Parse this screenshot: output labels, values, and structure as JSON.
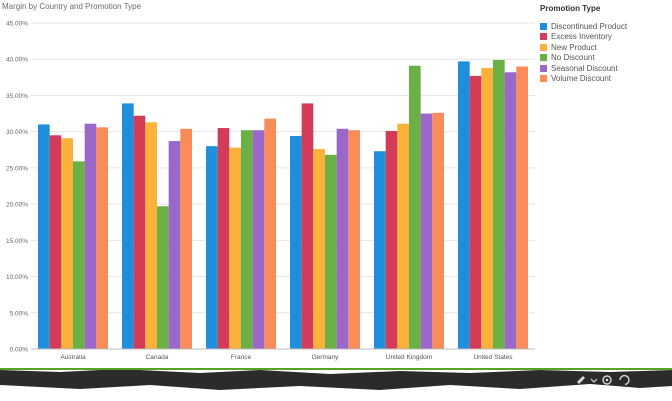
{
  "chart_data": {
    "type": "bar",
    "title": "Margin by Country and Promotion Type",
    "legend_title": "Promotion Type",
    "legend_position": "right",
    "categories": [
      "Australia",
      "Canada",
      "France",
      "Germany",
      "United Kingdom",
      "United States"
    ],
    "series": [
      {
        "name": "Discontinued Product",
        "color": "#1f8fdb",
        "values": [
          31.0,
          33.9,
          28.0,
          29.4,
          27.3,
          39.7
        ]
      },
      {
        "name": "Excess Inventory",
        "color": "#d33b5a",
        "values": [
          29.5,
          32.2,
          30.5,
          33.9,
          30.1,
          37.7
        ]
      },
      {
        "name": "New Product",
        "color": "#fcb23a",
        "values": [
          29.1,
          31.3,
          27.8,
          27.6,
          31.1,
          38.8
        ]
      },
      {
        "name": "No Discount",
        "color": "#6ab045",
        "values": [
          25.9,
          19.7,
          30.2,
          26.8,
          39.1,
          39.9
        ]
      },
      {
        "name": "Seasonal Discount",
        "color": "#9b68c9",
        "values": [
          31.1,
          28.7,
          30.2,
          30.4,
          32.5,
          38.2
        ]
      },
      {
        "name": "Volume Discount",
        "color": "#fa8c5a",
        "values": [
          30.6,
          30.4,
          31.8,
          30.2,
          32.6,
          39.0
        ]
      }
    ],
    "y_ticks": [
      "0.00%",
      "5.00%",
      "10.00%",
      "15.00%",
      "20.00%",
      "25.00%",
      "30.00%",
      "35.00%",
      "40.00%",
      "45.00%"
    ],
    "ylim": [
      0,
      45
    ],
    "grid": true
  },
  "taskbar_icons": [
    "pen-icon",
    "chevron-icon",
    "settings-icon",
    "refresh-icon"
  ]
}
